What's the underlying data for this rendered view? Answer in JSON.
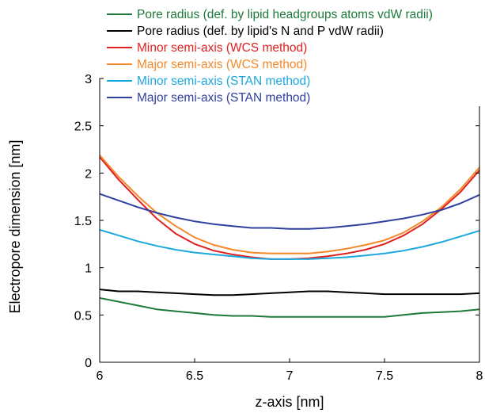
{
  "chart_data": {
    "type": "line",
    "title": "",
    "xlabel": "z-axis [nm]",
    "ylabel": "Electropore dimension [nm]",
    "xlim": [
      6,
      8
    ],
    "ylim": [
      0,
      3
    ],
    "xticks": [
      6,
      6.5,
      7,
      7.5,
      8
    ],
    "xtick_labels": [
      "6",
      "6.5",
      "7",
      "7.5",
      "8"
    ],
    "yticks": [
      0,
      0.5,
      1,
      1.5,
      2,
      2.5,
      3
    ],
    "ytick_labels": [
      "0",
      "0.5",
      "1",
      "1.5",
      "2",
      "2.5",
      "3"
    ],
    "grid": false,
    "legend_position": "top-center, above plot",
    "series": [
      {
        "name": "Pore radius (def. by lipid headgroups atoms vdW radii)",
        "color": "#1e7a3a",
        "x": [
          6.0,
          6.1,
          6.2,
          6.3,
          6.4,
          6.5,
          6.6,
          6.7,
          6.8,
          6.9,
          7.0,
          7.1,
          7.2,
          7.3,
          7.4,
          7.5,
          7.6,
          7.7,
          7.8,
          7.9,
          8.0
        ],
        "y": [
          0.68,
          0.64,
          0.6,
          0.56,
          0.54,
          0.52,
          0.5,
          0.49,
          0.49,
          0.48,
          0.48,
          0.48,
          0.48,
          0.48,
          0.48,
          0.48,
          0.5,
          0.52,
          0.53,
          0.54,
          0.56
        ]
      },
      {
        "name": "Pore radius (def. by lipid's N and P vdW radii)",
        "color": "#000000",
        "x": [
          6.0,
          6.1,
          6.2,
          6.3,
          6.4,
          6.5,
          6.6,
          6.7,
          6.8,
          6.9,
          7.0,
          7.1,
          7.2,
          7.3,
          7.4,
          7.5,
          7.6,
          7.7,
          7.8,
          7.9,
          8.0
        ],
        "y": [
          0.77,
          0.75,
          0.75,
          0.74,
          0.73,
          0.72,
          0.71,
          0.71,
          0.72,
          0.73,
          0.74,
          0.75,
          0.75,
          0.74,
          0.73,
          0.72,
          0.72,
          0.72,
          0.72,
          0.72,
          0.73
        ]
      },
      {
        "name": "Minor semi-axis (WCS method)",
        "color": "#e02020",
        "x": [
          6.0,
          6.1,
          6.2,
          6.3,
          6.4,
          6.5,
          6.6,
          6.7,
          6.8,
          6.9,
          7.0,
          7.1,
          7.2,
          7.3,
          7.4,
          7.5,
          7.6,
          7.7,
          7.8,
          7.9,
          8.0
        ],
        "y": [
          2.17,
          1.93,
          1.72,
          1.52,
          1.36,
          1.25,
          1.18,
          1.14,
          1.11,
          1.09,
          1.09,
          1.1,
          1.12,
          1.15,
          1.19,
          1.25,
          1.34,
          1.46,
          1.62,
          1.8,
          2.03
        ]
      },
      {
        "name": "Major semi-axis (WCS method)",
        "color": "#f5892a",
        "x": [
          6.0,
          6.1,
          6.2,
          6.3,
          6.4,
          6.5,
          6.6,
          6.7,
          6.8,
          6.9,
          7.0,
          7.1,
          7.2,
          7.3,
          7.4,
          7.5,
          7.6,
          7.7,
          7.8,
          7.9,
          8.0
        ],
        "y": [
          2.19,
          1.96,
          1.76,
          1.58,
          1.44,
          1.32,
          1.24,
          1.19,
          1.16,
          1.15,
          1.15,
          1.15,
          1.17,
          1.2,
          1.24,
          1.29,
          1.37,
          1.49,
          1.64,
          1.83,
          2.06
        ]
      },
      {
        "name": "Minor semi-axis (STAN method)",
        "color": "#1ba7e0",
        "x": [
          6.0,
          6.1,
          6.2,
          6.3,
          6.4,
          6.5,
          6.6,
          6.7,
          6.8,
          6.9,
          7.0,
          7.1,
          7.2,
          7.3,
          7.4,
          7.5,
          7.6,
          7.7,
          7.8,
          7.9,
          8.0
        ],
        "y": [
          1.4,
          1.34,
          1.28,
          1.23,
          1.19,
          1.16,
          1.14,
          1.12,
          1.1,
          1.09,
          1.09,
          1.09,
          1.1,
          1.11,
          1.13,
          1.15,
          1.18,
          1.22,
          1.27,
          1.33,
          1.39
        ]
      },
      {
        "name": "Major semi-axis (STAN method)",
        "color": "#3040a0",
        "x": [
          6.0,
          6.1,
          6.2,
          6.3,
          6.4,
          6.5,
          6.6,
          6.7,
          6.8,
          6.9,
          7.0,
          7.1,
          7.2,
          7.3,
          7.4,
          7.5,
          7.6,
          7.7,
          7.8,
          7.9,
          8.0
        ],
        "y": [
          1.78,
          1.71,
          1.64,
          1.58,
          1.53,
          1.49,
          1.46,
          1.44,
          1.42,
          1.42,
          1.41,
          1.41,
          1.42,
          1.44,
          1.46,
          1.49,
          1.52,
          1.56,
          1.61,
          1.68,
          1.77
        ]
      }
    ]
  }
}
